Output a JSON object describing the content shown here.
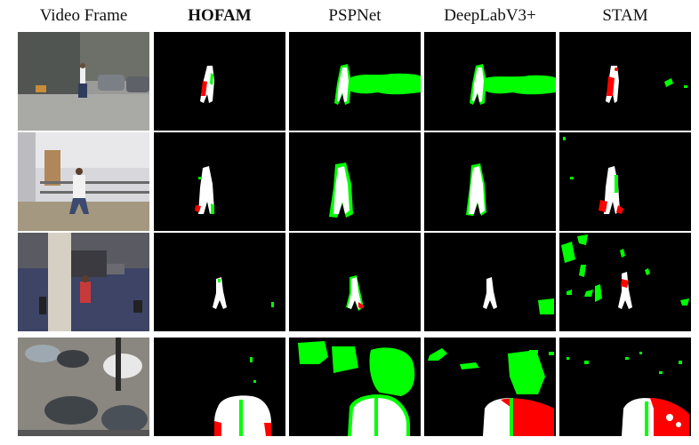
{
  "columns": [
    {
      "key": "frame",
      "label": "Video Frame",
      "bold": false
    },
    {
      "key": "hofam",
      "label": "HOFAM",
      "bold": true
    },
    {
      "key": "pspnet",
      "label": "PSPNet",
      "bold": false
    },
    {
      "key": "deeplab",
      "label": "DeepLabV3+",
      "bold": false
    },
    {
      "key": "stam",
      "label": "STAM",
      "bold": false
    }
  ],
  "legend_colors": {
    "correct": "#ffffff",
    "false_positive": "#00ff00",
    "false_negative": "#ff0000",
    "background": "#000000"
  },
  "rows": 4
}
